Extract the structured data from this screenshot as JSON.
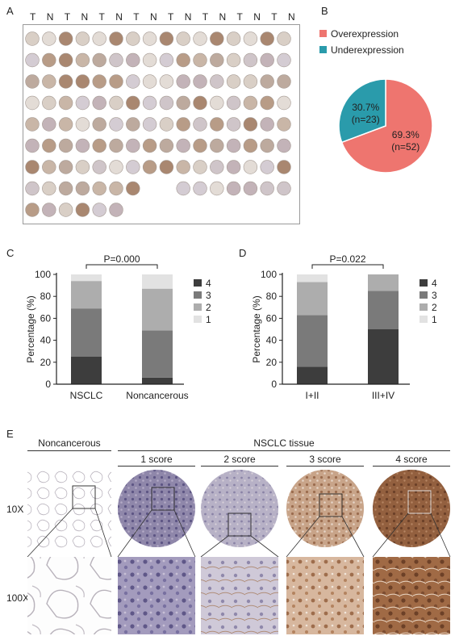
{
  "panels": {
    "A": {
      "letter": "A",
      "column_labels": [
        "T",
        "N",
        "T",
        "N",
        "T",
        "N",
        "T",
        "N",
        "T",
        "N",
        "T",
        "N",
        "T",
        "N",
        "T",
        "N"
      ],
      "rows": 9
    },
    "B": {
      "letter": "B"
    },
    "C": {
      "letter": "C"
    },
    "D": {
      "letter": "D"
    },
    "E": {
      "letter": "E",
      "header_left": "Noncancerous",
      "header_right": "NSCLC tissue",
      "sub_headers": [
        "1 score",
        "2 score",
        "3 score",
        "4 score"
      ],
      "row_labels": [
        "10X",
        "100X"
      ]
    }
  },
  "chart_data": [
    {
      "id": "B",
      "type": "pie",
      "legend": [
        "Overexpression",
        "Underexpression"
      ],
      "legend_position": "top",
      "slices": [
        {
          "name": "Overexpression",
          "value": 69.3,
          "label": "69.3%",
          "n_label": "(n=52)",
          "color": "#ee756f"
        },
        {
          "name": "Underexpression",
          "value": 30.7,
          "label": "30.7%",
          "n_label": "(n=23)",
          "color": "#2a9bab"
        }
      ]
    },
    {
      "id": "C",
      "type": "bar",
      "stacked": true,
      "categories": [
        "NSCLC",
        "Noncancerous"
      ],
      "ylabel": "Percentage (%)",
      "ylim": [
        0,
        100
      ],
      "yticks": [
        0,
        20,
        40,
        60,
        80,
        100
      ],
      "p_value": "P=0.000",
      "series": [
        {
          "name": "4",
          "color": "#3d3d3d",
          "values": [
            25,
            6
          ]
        },
        {
          "name": "3",
          "color": "#7a7a7a",
          "values": [
            44,
            43
          ]
        },
        {
          "name": "2",
          "color": "#adadad",
          "values": [
            25,
            38
          ]
        },
        {
          "name": "1",
          "color": "#e2e2e2",
          "values": [
            6,
            13
          ]
        }
      ]
    },
    {
      "id": "D",
      "type": "bar",
      "stacked": true,
      "categories": [
        "I+II",
        "III+IV"
      ],
      "ylabel": "Percentage (%)",
      "ylim": [
        0,
        100
      ],
      "yticks": [
        0,
        20,
        40,
        60,
        80,
        100
      ],
      "p_value": "P=0.022",
      "series": [
        {
          "name": "4",
          "color": "#3d3d3d",
          "values": [
            16,
            50
          ]
        },
        {
          "name": "3",
          "color": "#7a7a7a",
          "values": [
            47,
            35
          ]
        },
        {
          "name": "2",
          "color": "#adadad",
          "values": [
            30,
            15
          ]
        },
        {
          "name": "1",
          "color": "#e2e2e2",
          "values": [
            7,
            0
          ]
        }
      ]
    }
  ]
}
